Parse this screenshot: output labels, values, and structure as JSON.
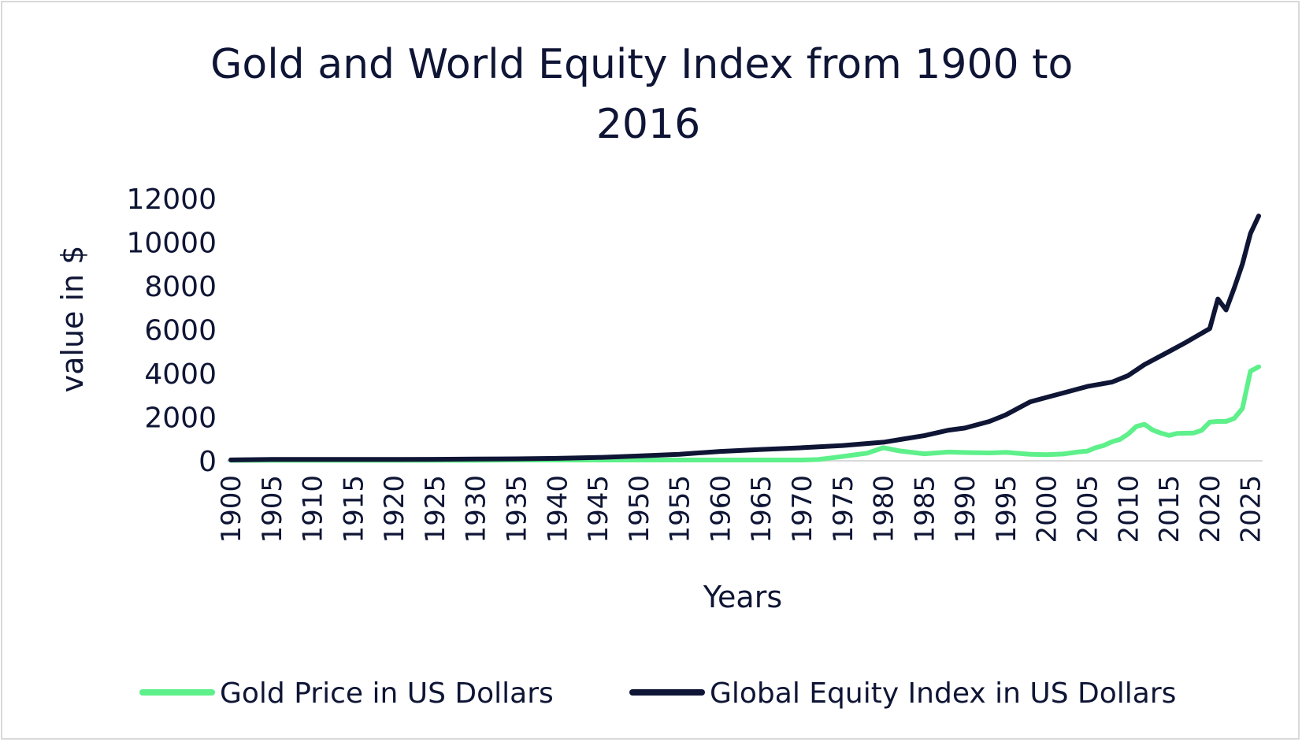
{
  "chart_data": {
    "type": "line",
    "title": "Gold and World Equity Index from 1900 to 2016",
    "xlabel": "Years",
    "ylabel": "value in $",
    "ylim": [
      0,
      12000
    ],
    "yticks": [
      "0",
      "2000",
      "4000",
      "6000",
      "8000",
      "10000",
      "12000"
    ],
    "xlim": [
      1900,
      2026
    ],
    "xticks": [
      "1900",
      "1905",
      "1910",
      "1915",
      "1920",
      "1925",
      "1930",
      "1935",
      "1940",
      "1945",
      "1950",
      "1955",
      "1960",
      "1965",
      "1970",
      "1975",
      "1980",
      "1985",
      "1990",
      "1995",
      "2000",
      "2005",
      "2010",
      "2015",
      "2020",
      "2025"
    ],
    "grid": false,
    "legend": "bottom",
    "series": [
      {
        "name": "Gold Price in US Dollars",
        "color": "#5ef08a",
        "points": [
          [
            1900,
            20
          ],
          [
            1905,
            20
          ],
          [
            1910,
            20
          ],
          [
            1915,
            20
          ],
          [
            1920,
            20
          ],
          [
            1925,
            20
          ],
          [
            1930,
            20
          ],
          [
            1934,
            35
          ],
          [
            1940,
            35
          ],
          [
            1945,
            35
          ],
          [
            1950,
            35
          ],
          [
            1955,
            35
          ],
          [
            1960,
            35
          ],
          [
            1965,
            35
          ],
          [
            1970,
            36
          ],
          [
            1972,
            58
          ],
          [
            1974,
            150
          ],
          [
            1976,
            250
          ],
          [
            1978,
            350
          ],
          [
            1980,
            600
          ],
          [
            1982,
            450
          ],
          [
            1985,
            320
          ],
          [
            1988,
            400
          ],
          [
            1990,
            380
          ],
          [
            1993,
            360
          ],
          [
            1995,
            385
          ],
          [
            1998,
            295
          ],
          [
            2000,
            280
          ],
          [
            2002,
            310
          ],
          [
            2004,
            410
          ],
          [
            2005,
            445
          ],
          [
            2006,
            600
          ],
          [
            2007,
            700
          ],
          [
            2008,
            870
          ],
          [
            2009,
            975
          ],
          [
            2010,
            1225
          ],
          [
            2011,
            1570
          ],
          [
            2012,
            1670
          ],
          [
            2013,
            1410
          ],
          [
            2014,
            1270
          ],
          [
            2015,
            1160
          ],
          [
            2016,
            1250
          ],
          [
            2017,
            1260
          ],
          [
            2018,
            1270
          ],
          [
            2019,
            1390
          ],
          [
            2020,
            1770
          ],
          [
            2021,
            1800
          ],
          [
            2022,
            1800
          ],
          [
            2023,
            1940
          ],
          [
            2024,
            2390
          ],
          [
            2025,
            4100
          ],
          [
            2026,
            4300
          ]
        ]
      },
      {
        "name": "Global Equity Index in US Dollars",
        "color": "#0f1535",
        "points": [
          [
            1900,
            40
          ],
          [
            1905,
            60
          ],
          [
            1910,
            65
          ],
          [
            1915,
            60
          ],
          [
            1920,
            60
          ],
          [
            1925,
            70
          ],
          [
            1930,
            80
          ],
          [
            1935,
            90
          ],
          [
            1940,
            110
          ],
          [
            1945,
            150
          ],
          [
            1950,
            220
          ],
          [
            1955,
            300
          ],
          [
            1960,
            430
          ],
          [
            1965,
            520
          ],
          [
            1970,
            600
          ],
          [
            1975,
            700
          ],
          [
            1980,
            850
          ],
          [
            1985,
            1150
          ],
          [
            1988,
            1400
          ],
          [
            1990,
            1500
          ],
          [
            1993,
            1800
          ],
          [
            1995,
            2100
          ],
          [
            1998,
            2700
          ],
          [
            2000,
            2900
          ],
          [
            2002,
            3100
          ],
          [
            2005,
            3400
          ],
          [
            2008,
            3600
          ],
          [
            2010,
            3900
          ],
          [
            2012,
            4400
          ],
          [
            2015,
            5000
          ],
          [
            2017,
            5400
          ],
          [
            2020,
            6050
          ],
          [
            2021,
            7400
          ],
          [
            2022,
            6900
          ],
          [
            2023,
            7900
          ],
          [
            2024,
            9000
          ],
          [
            2025,
            10400
          ],
          [
            2026,
            11200
          ]
        ]
      }
    ]
  }
}
